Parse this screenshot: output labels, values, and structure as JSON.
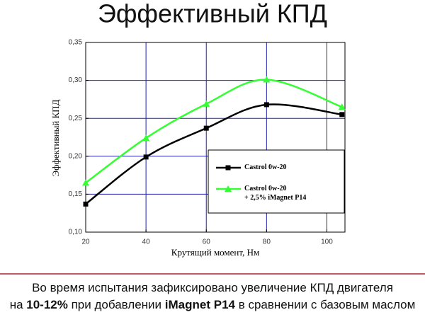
{
  "chart_data": {
    "type": "line",
    "title": "Эффективный КПД",
    "xlabel": "Крутящий момент, Нм",
    "ylabel": "Эффективный КПД",
    "x": [
      20,
      40,
      60,
      80,
      105
    ],
    "series": [
      {
        "name": "Castrol 0w-20",
        "color": "#000000",
        "marker": "square",
        "values": [
          0.137,
          0.199,
          0.237,
          0.268,
          0.255
        ]
      },
      {
        "name": "Castrol 0w-20\n+ 2,5% iMagnet P14",
        "color": "#33ff33",
        "marker": "triangle",
        "values": [
          0.165,
          0.224,
          0.269,
          0.301,
          0.265
        ]
      }
    ],
    "xlim": [
      20,
      106
    ],
    "xticks": [
      20,
      40,
      60,
      80,
      100
    ],
    "ylim": [
      0.1,
      0.35
    ],
    "yticks": [
      {
        "value": 0.1,
        "label": "0,10"
      },
      {
        "value": 0.15,
        "label": "0,15"
      },
      {
        "value": 0.2,
        "label": "0,20"
      },
      {
        "value": 0.25,
        "label": "0,25"
      },
      {
        "value": 0.3,
        "label": "0,30"
      },
      {
        "value": 0.35,
        "label": "0,35"
      }
    ],
    "grid": true,
    "grid_color": "#2222aa"
  },
  "caption": {
    "lines": [
      [
        "Во время испытания зафиксировано увеличение КПД двигателя"
      ],
      [
        "на ",
        "10-12%",
        " при добавлении ",
        "iMagnet P14",
        " в сравнении с базовым маслом"
      ]
    ]
  }
}
